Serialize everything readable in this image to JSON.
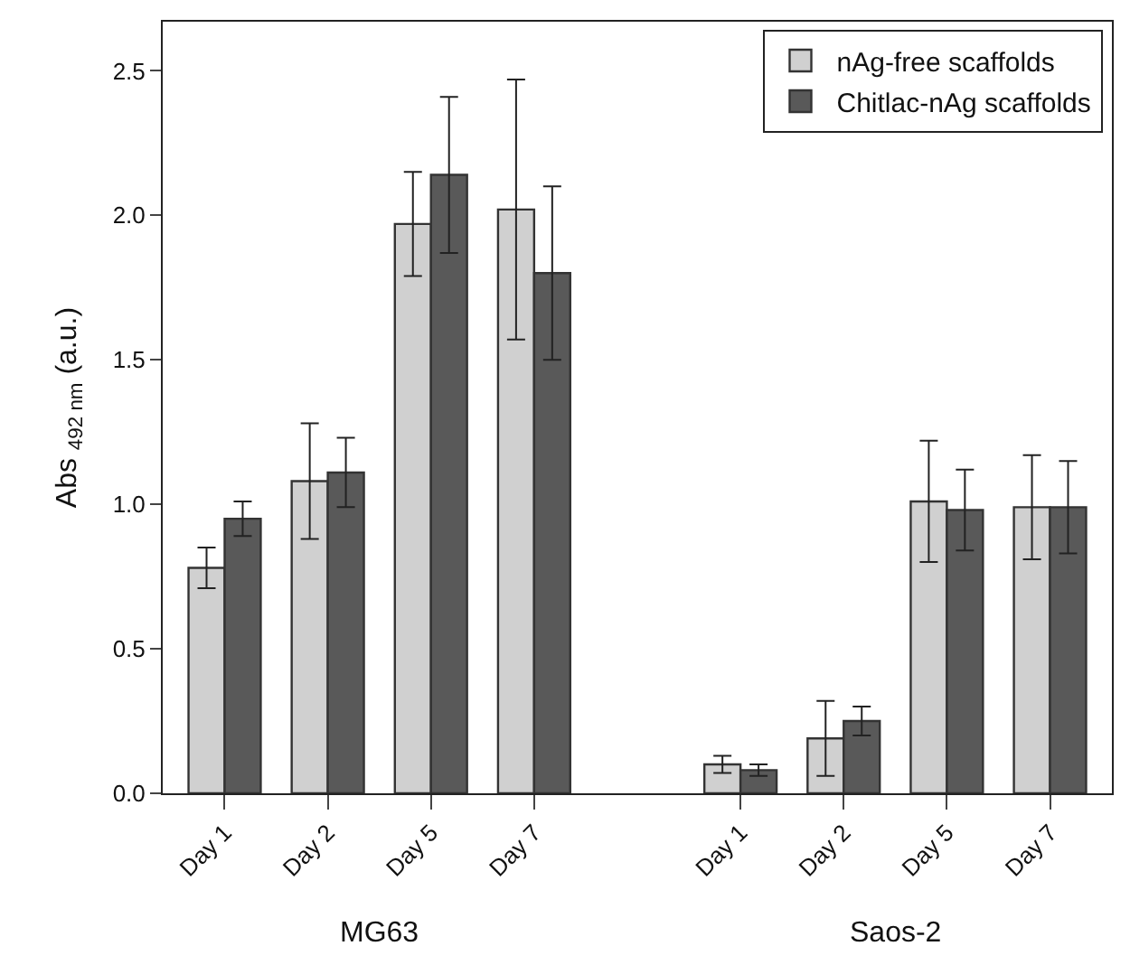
{
  "chart_data": {
    "type": "bar",
    "ylabel": "Abs $_{492 nm}$ (a.u.)",
    "categories": [
      "Day 1",
      "Day 2",
      "Day 5",
      "Day 7",
      null,
      "Day 1",
      "Day 2",
      "Day 5",
      "Day 7"
    ],
    "series": [
      {
        "name": "nAg-free scaffolds",
        "color": "#d0d0d0",
        "values": [
          0.78,
          1.08,
          1.97,
          2.02,
          null,
          0.1,
          0.19,
          1.01,
          0.99
        ],
        "errors": [
          0.07,
          0.2,
          0.18,
          0.45,
          null,
          0.03,
          0.13,
          0.21,
          0.18
        ]
      },
      {
        "name": "Chitlac-nAg scaffolds",
        "color": "#595959",
        "values": [
          0.95,
          1.11,
          2.14,
          1.8,
          null,
          0.08,
          0.25,
          0.98,
          0.99
        ],
        "errors": [
          0.06,
          0.12,
          0.27,
          0.3,
          null,
          0.02,
          0.05,
          0.14,
          0.16
        ]
      }
    ],
    "annotations": [
      "MG63",
      "Saos-2"
    ],
    "ylim": [
      0,
      2.67
    ],
    "yticks": [
      {
        "value": 0,
        "label": "0.0"
      },
      0.5,
      {
        "value": 1,
        "label": "1.0"
      },
      1.5,
      {
        "value": 2,
        "label": "2.0"
      },
      2.5
    ],
    "legend": "top right"
  }
}
